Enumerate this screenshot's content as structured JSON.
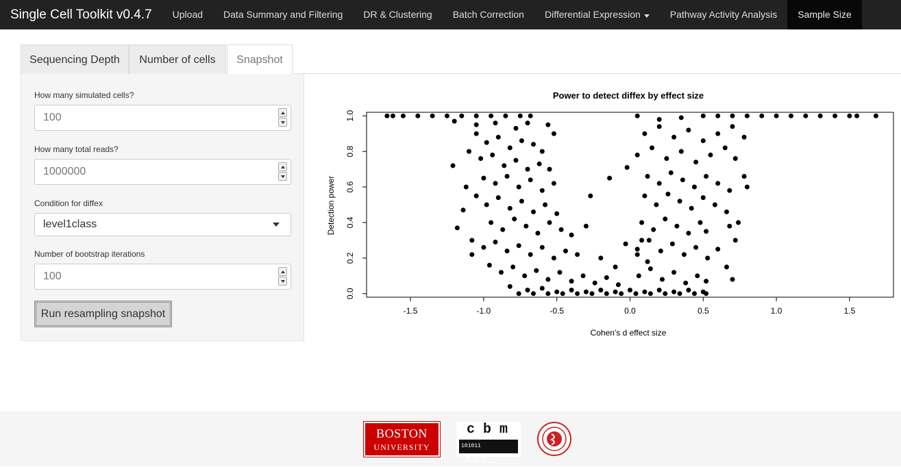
{
  "navbar": {
    "brand": "Single Cell Toolkit v0.4.7",
    "items": [
      {
        "label": "Upload"
      },
      {
        "label": "Data Summary and Filtering"
      },
      {
        "label": "DR & Clustering"
      },
      {
        "label": "Batch Correction"
      },
      {
        "label": "Differential Expression",
        "dropdown": true
      },
      {
        "label": "Pathway Activity Analysis"
      },
      {
        "label": "Sample Size",
        "active": true
      }
    ]
  },
  "tabs": [
    {
      "label": "Sequencing Depth"
    },
    {
      "label": "Number of cells"
    },
    {
      "label": "Snapshot",
      "active": true
    }
  ],
  "sidebar": {
    "cells_label": "How many simulated cells?",
    "cells_value": "100",
    "reads_label": "How many total reads?",
    "reads_value": "1000000",
    "condition_label": "Condition for diffex",
    "condition_value": "level1class",
    "bootstrap_label": "Number of bootstrap iterations",
    "bootstrap_value": "100",
    "run_button": "Run resampling snapshot"
  },
  "chart_data": {
    "type": "scatter",
    "title": "Power to detect diffex by effect size",
    "xlabel": "Cohen's d effect size",
    "ylabel": "Detection power",
    "xlim": [
      -1.8,
      1.8
    ],
    "ylim": [
      -0.02,
      1.02
    ],
    "xticks": [
      "-1.5",
      "-1.0",
      "-0.5",
      "0.0",
      "0.5",
      "1.0",
      "1.5"
    ],
    "xtick_values": [
      -1.5,
      -1.0,
      -0.5,
      0.0,
      0.5,
      1.0,
      1.5
    ],
    "yticks": [
      "0.0",
      "0.2",
      "0.4",
      "0.6",
      "0.8",
      "1.0"
    ],
    "ytick_values": [
      0.0,
      0.2,
      0.4,
      0.6,
      0.8,
      1.0
    ],
    "point_color": "#000000",
    "points": [
      [
        -1.66,
        1.0
      ],
      [
        -1.62,
        1.0
      ],
      [
        -1.55,
        1.0
      ],
      [
        -1.45,
        1.0
      ],
      [
        -1.35,
        1.0
      ],
      [
        -1.25,
        1.0
      ],
      [
        -1.15,
        1.0
      ],
      [
        -1.05,
        1.0
      ],
      [
        -0.95,
        1.0
      ],
      [
        -0.85,
        1.0
      ],
      [
        -0.75,
        1.0
      ],
      [
        -0.68,
        1.0
      ],
      [
        -1.2,
        0.97
      ],
      [
        -1.05,
        0.95
      ],
      [
        -0.92,
        0.96
      ],
      [
        -0.78,
        0.93
      ],
      [
        -0.7,
        0.96
      ],
      [
        -0.56,
        0.95
      ],
      [
        -0.52,
        0.9
      ],
      [
        -1.05,
        0.9
      ],
      [
        -0.98,
        0.85
      ],
      [
        -0.9,
        0.88
      ],
      [
        -0.82,
        0.82
      ],
      [
        -0.74,
        0.86
      ],
      [
        -0.66,
        0.84
      ],
      [
        -0.6,
        0.8
      ],
      [
        -1.1,
        0.8
      ],
      [
        -1.02,
        0.76
      ],
      [
        -0.94,
        0.78
      ],
      [
        -0.86,
        0.72
      ],
      [
        -0.78,
        0.75
      ],
      [
        -0.7,
        0.7
      ],
      [
        -0.62,
        0.73
      ],
      [
        -0.55,
        0.7
      ],
      [
        -1.21,
        0.72
      ],
      [
        -1.0,
        0.65
      ],
      [
        -0.92,
        0.62
      ],
      [
        -0.84,
        0.66
      ],
      [
        -0.76,
        0.6
      ],
      [
        -0.68,
        0.64
      ],
      [
        -0.6,
        0.58
      ],
      [
        -0.52,
        0.62
      ],
      [
        -1.12,
        0.6
      ],
      [
        -1.05,
        0.55
      ],
      [
        -0.98,
        0.5
      ],
      [
        -0.9,
        0.54
      ],
      [
        -0.82,
        0.48
      ],
      [
        -0.74,
        0.52
      ],
      [
        -0.66,
        0.46
      ],
      [
        -0.58,
        0.5
      ],
      [
        -0.5,
        0.45
      ],
      [
        -1.14,
        0.47
      ],
      [
        -1.18,
        0.37
      ],
      [
        -0.95,
        0.4
      ],
      [
        -0.87,
        0.36
      ],
      [
        -0.79,
        0.42
      ],
      [
        -0.71,
        0.38
      ],
      [
        -0.63,
        0.34
      ],
      [
        -0.55,
        0.4
      ],
      [
        -0.47,
        0.36
      ],
      [
        -0.4,
        0.33
      ],
      [
        -0.3,
        0.38
      ],
      [
        -0.27,
        0.55
      ],
      [
        -1.08,
        0.3
      ],
      [
        -1.0,
        0.26
      ],
      [
        -0.92,
        0.29
      ],
      [
        -0.84,
        0.24
      ],
      [
        -0.76,
        0.27
      ],
      [
        -0.68,
        0.22
      ],
      [
        -0.6,
        0.26
      ],
      [
        -0.52,
        0.2
      ],
      [
        -0.44,
        0.24
      ],
      [
        -0.36,
        0.22
      ],
      [
        -1.08,
        0.22
      ],
      [
        -0.96,
        0.16
      ],
      [
        -0.88,
        0.12
      ],
      [
        -0.8,
        0.15
      ],
      [
        -0.72,
        0.1
      ],
      [
        -0.64,
        0.13
      ],
      [
        -0.56,
        0.08
      ],
      [
        -0.48,
        0.12
      ],
      [
        -0.4,
        0.07
      ],
      [
        -0.32,
        0.1
      ],
      [
        -0.24,
        0.06
      ],
      [
        -0.16,
        0.09
      ],
      [
        -0.08,
        0.05
      ],
      [
        -0.82,
        0.04
      ],
      [
        -0.7,
        0.02
      ],
      [
        -0.6,
        0.03
      ],
      [
        -0.5,
        0.01
      ],
      [
        -0.4,
        0.02
      ],
      [
        -0.3,
        0.01
      ],
      [
        -0.2,
        0.02
      ],
      [
        -0.1,
        0.01
      ],
      [
        0.0,
        0.02
      ],
      [
        0.1,
        0.01
      ],
      [
        0.2,
        0.02
      ],
      [
        0.3,
        0.01
      ],
      [
        0.4,
        0.02
      ],
      [
        0.5,
        0.01
      ],
      [
        -0.76,
        0.0
      ],
      [
        -0.66,
        0.0
      ],
      [
        -0.56,
        0.0
      ],
      [
        -0.46,
        0.0
      ],
      [
        -0.36,
        0.0
      ],
      [
        -0.26,
        0.0
      ],
      [
        -0.16,
        0.0
      ],
      [
        -0.06,
        0.0
      ],
      [
        0.04,
        0.0
      ],
      [
        0.14,
        0.0
      ],
      [
        0.24,
        0.0
      ],
      [
        0.34,
        0.0
      ],
      [
        0.44,
        0.0
      ],
      [
        0.52,
        0.0
      ],
      [
        -0.2,
        0.2
      ],
      [
        -0.1,
        0.15
      ],
      [
        -0.03,
        0.28
      ],
      [
        0.05,
        0.22
      ],
      [
        0.12,
        0.18
      ],
      [
        0.08,
        0.3
      ],
      [
        -0.14,
        0.65
      ],
      [
        -0.02,
        0.71
      ],
      [
        0.06,
        0.1
      ],
      [
        0.14,
        0.14
      ],
      [
        0.22,
        0.08
      ],
      [
        0.3,
        0.12
      ],
      [
        0.38,
        0.06
      ],
      [
        0.46,
        0.1
      ],
      [
        0.52,
        0.07
      ],
      [
        0.05,
        0.25
      ],
      [
        0.13,
        0.3
      ],
      [
        0.21,
        0.24
      ],
      [
        0.29,
        0.28
      ],
      [
        0.37,
        0.22
      ],
      [
        0.45,
        0.26
      ],
      [
        0.53,
        0.2
      ],
      [
        0.08,
        0.4
      ],
      [
        0.16,
        0.36
      ],
      [
        0.24,
        0.42
      ],
      [
        0.32,
        0.38
      ],
      [
        0.4,
        0.34
      ],
      [
        0.48,
        0.4
      ],
      [
        0.52,
        0.35
      ],
      [
        0.1,
        0.55
      ],
      [
        0.18,
        0.5
      ],
      [
        0.26,
        0.56
      ],
      [
        0.34,
        0.52
      ],
      [
        0.42,
        0.48
      ],
      [
        0.5,
        0.54
      ],
      [
        0.58,
        0.5
      ],
      [
        0.66,
        0.46
      ],
      [
        0.74,
        0.4
      ],
      [
        0.12,
        0.66
      ],
      [
        0.2,
        0.62
      ],
      [
        0.28,
        0.68
      ],
      [
        0.36,
        0.64
      ],
      [
        0.44,
        0.6
      ],
      [
        0.52,
        0.66
      ],
      [
        0.6,
        0.62
      ],
      [
        0.68,
        0.58
      ],
      [
        0.78,
        0.66
      ],
      [
        0.8,
        0.6
      ],
      [
        0.05,
        0.78
      ],
      [
        0.15,
        0.82
      ],
      [
        0.25,
        0.76
      ],
      [
        0.35,
        0.8
      ],
      [
        0.45,
        0.74
      ],
      [
        0.55,
        0.78
      ],
      [
        0.65,
        0.82
      ],
      [
        0.72,
        0.76
      ],
      [
        0.1,
        0.9
      ],
      [
        0.2,
        0.94
      ],
      [
        0.3,
        0.88
      ],
      [
        0.4,
        0.92
      ],
      [
        0.5,
        0.86
      ],
      [
        0.6,
        0.9
      ],
      [
        0.7,
        0.94
      ],
      [
        0.78,
        0.88
      ],
      [
        0.05,
        1.0
      ],
      [
        0.2,
        0.98
      ],
      [
        0.35,
        0.99
      ],
      [
        0.5,
        1.0
      ],
      [
        0.6,
        1.0
      ],
      [
        0.7,
        1.0
      ],
      [
        0.8,
        1.0
      ],
      [
        0.9,
        1.0
      ],
      [
        1.0,
        1.0
      ],
      [
        1.1,
        1.0
      ],
      [
        1.2,
        1.0
      ],
      [
        1.3,
        1.0
      ],
      [
        1.4,
        1.0
      ],
      [
        1.5,
        1.0
      ],
      [
        1.55,
        1.0
      ],
      [
        1.68,
        1.0
      ],
      [
        0.68,
        0.38
      ],
      [
        0.72,
        0.3
      ],
      [
        0.6,
        0.25
      ],
      [
        0.66,
        0.15
      ],
      [
        0.7,
        0.08
      ]
    ]
  },
  "footer": {
    "bu_line1": "BOSTON",
    "bu_line2": "UNIVERSITY",
    "cbm_letters": "cbm",
    "cbm_binary": "101011"
  }
}
